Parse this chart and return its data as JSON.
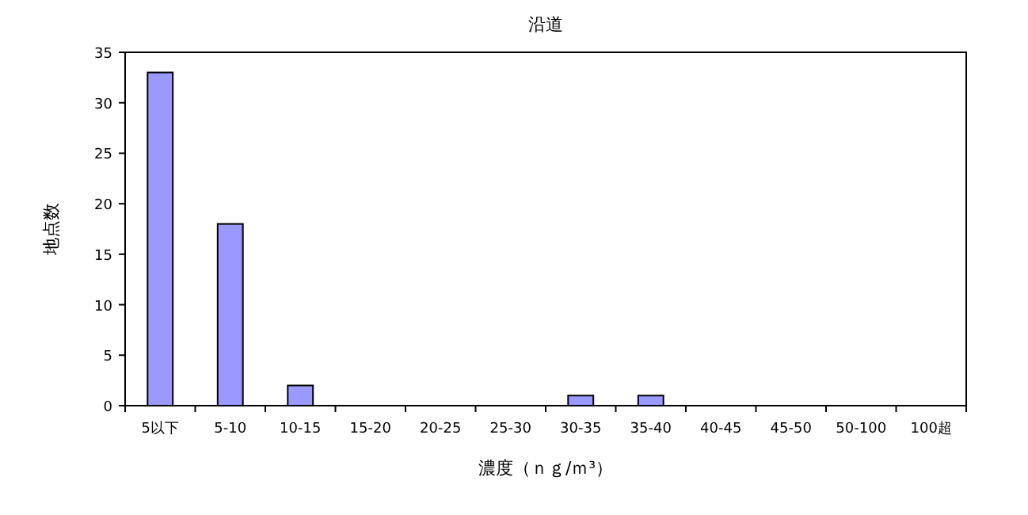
{
  "chart_data": {
    "type": "bar",
    "title": "沿道",
    "xlabel": "濃度（ｎｇ/ｍ³）",
    "ylabel": "地点数",
    "categories": [
      "5以下",
      "5-10",
      "10-15",
      "15-20",
      "20-25",
      "25-30",
      "30-35",
      "35-40",
      "40-45",
      "45-50",
      "50-100",
      "100超"
    ],
    "values": [
      33,
      18,
      2,
      0,
      0,
      0,
      1,
      1,
      0,
      0,
      0,
      0
    ],
    "color": "#9999ff",
    "ylim": [
      0,
      35
    ],
    "yticks": [
      0,
      5,
      10,
      15,
      20,
      25,
      30,
      35
    ],
    "grid": false
  }
}
